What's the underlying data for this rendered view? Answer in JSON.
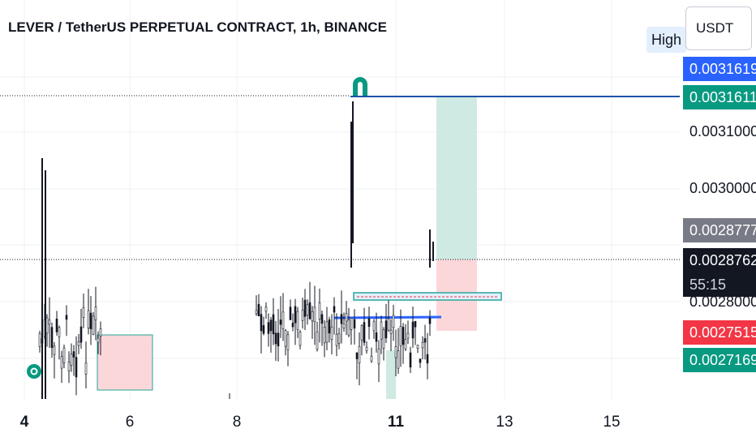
{
  "header": {
    "title": "LEVER / TetherUS PERPETUAL CONTRACT, 1h, BINANCE",
    "currency": "USDT",
    "high_tag": "High"
  },
  "price_labels": {
    "high_1": "0.0031619",
    "high_2": "0.0031611",
    "mark": "0.0028777",
    "last": "0.0028762",
    "countdown": "55:15",
    "sell": "0.0027515",
    "buy": "0.0027169"
  },
  "colors": {
    "blue_label": "#2962ff",
    "green_label": "#089981",
    "gray_label": "#787b86",
    "black_label": "#131722",
    "red_label": "#f23645",
    "candle": "#131722",
    "profit_zone": "#cfeae3",
    "loss_zone": "#fbd7da",
    "level_line": "#1e53a8",
    "teal": "#089981"
  },
  "chart_data": {
    "type": "candlestick",
    "title": "LEVER / TetherUS PERPETUAL CONTRACT, 1h, BINANCE",
    "y_axis_ticks": [
      "0.0031000",
      "0.0030000",
      "0.0028000"
    ],
    "x_axis_ticks": [
      "4",
      "6",
      "8",
      "11",
      "13",
      "15"
    ],
    "ylim": [
      0.00265,
      0.0032
    ],
    "marked_prices": {
      "high": 0.0031611,
      "high_alt": 0.0031619,
      "mark": 0.0028777,
      "last": 0.0028762,
      "sell": 0.0027515,
      "buy": 0.0027169
    },
    "legend": "none",
    "grid": true
  }
}
